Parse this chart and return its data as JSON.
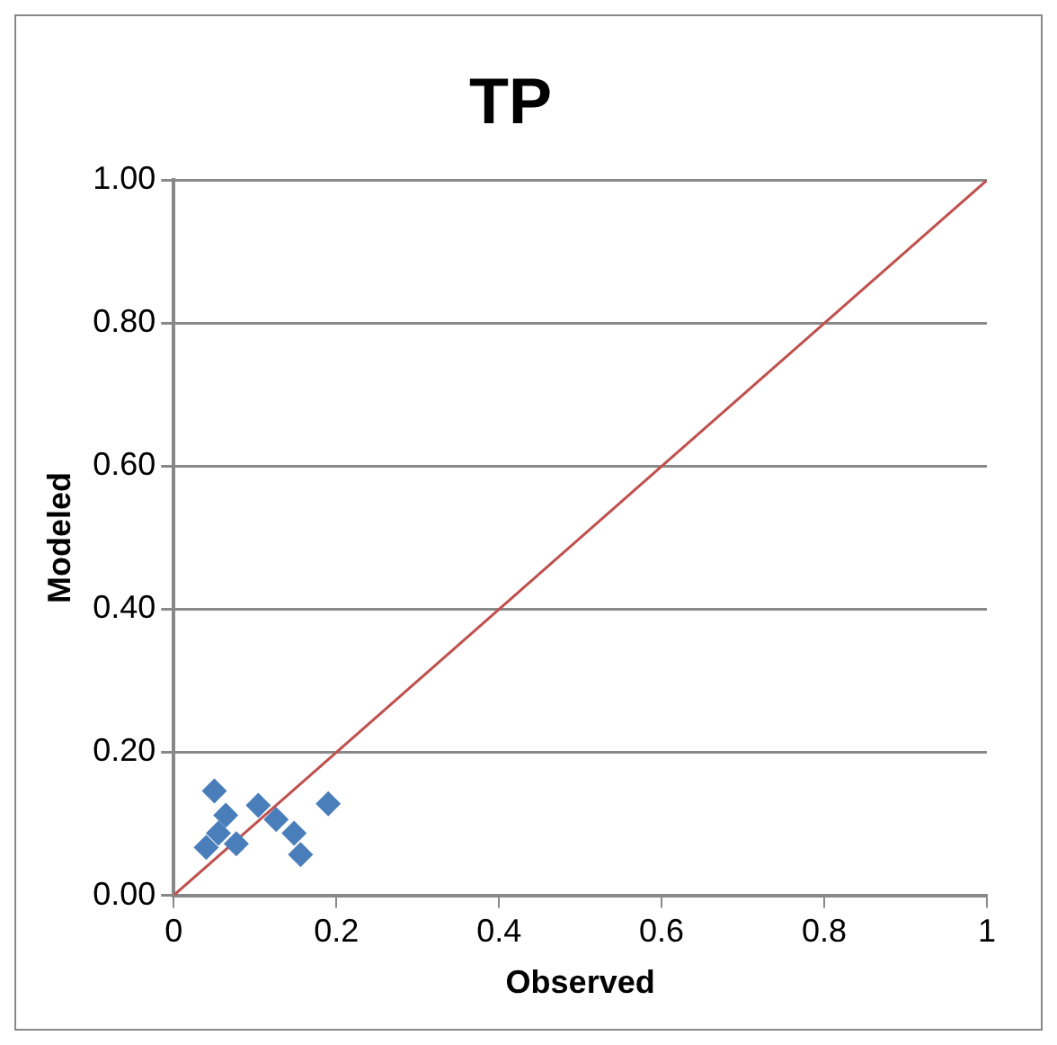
{
  "chart_data": {
    "type": "scatter",
    "title": "TP",
    "xlabel": "Observed",
    "ylabel": "Modeled",
    "xlim": [
      0,
      1
    ],
    "ylim": [
      0,
      1
    ],
    "xticks": [
      0,
      0.2,
      0.4,
      0.6,
      0.8,
      1
    ],
    "yticks": [
      {
        "value": 0,
        "label": "0.00"
      },
      {
        "value": 0.2,
        "label": "0.20"
      },
      {
        "value": 0.4,
        "label": "0.40"
      },
      {
        "value": 0.6,
        "label": "0.60"
      },
      {
        "value": 0.8,
        "label": "0.80"
      },
      {
        "value": 1,
        "label": "1.00"
      }
    ],
    "grid": "y",
    "legend": false,
    "marker": "diamond",
    "series": [
      {
        "color": "#4a7ebb",
        "x": [
          0.05,
          0.19,
          0.04,
          0.064,
          0.104,
          0.077,
          0.126,
          0.148,
          0.156,
          0.055
        ],
        "values": [
          0.146,
          0.128,
          0.067,
          0.112,
          0.126,
          0.072,
          0.106,
          0.087,
          0.057,
          0.087
        ]
      },
      {
        "type": "line",
        "color": "#c0504d",
        "marker": "none",
        "x": [
          0,
          1
        ],
        "values": [
          0,
          1
        ]
      }
    ]
  }
}
